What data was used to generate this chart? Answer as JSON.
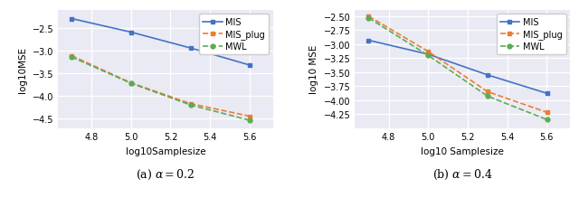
{
  "x": [
    4.699,
    5.0,
    5.301,
    5.602
  ],
  "a02_MIS": [
    -2.3,
    -2.6,
    -2.95,
    -3.33
  ],
  "a02_MIS_plug": [
    -3.12,
    -3.72,
    -4.18,
    -4.46
  ],
  "a02_MWL": [
    -3.15,
    -3.73,
    -4.21,
    -4.55
  ],
  "a04_MIS": [
    -2.93,
    -3.18,
    -3.55,
    -3.88
  ],
  "a04_MIS_plug": [
    -2.5,
    -3.13,
    -3.85,
    -4.22
  ],
  "a04_MWL": [
    -2.53,
    -3.2,
    -3.93,
    -4.35
  ],
  "color_MIS": "#4472c4",
  "color_MIS_plug": "#ed7d31",
  "color_MWL": "#5dab54",
  "xlabel_a": "log10Samplesize",
  "xlabel_b": "log10 Samplesize",
  "ylabel_a": "log10MSE",
  "ylabel_b": "log10 MSE",
  "title_a": "(a) $\\alpha = 0.2$",
  "title_b": "(b) $\\alpha = 0.4$",
  "xlim": [
    4.63,
    5.72
  ],
  "ylim_a": [
    -4.72,
    -2.1
  ],
  "ylim_b": [
    -4.5,
    -2.38
  ],
  "xticks": [
    4.8,
    5.0,
    5.2,
    5.4,
    5.6
  ],
  "yticks_a": [
    -4.5,
    -4.0,
    -3.5,
    -3.0,
    -2.5
  ],
  "yticks_b": [
    -4.25,
    -4.0,
    -3.75,
    -3.5,
    -3.25,
    -3.0,
    -2.75,
    -2.5
  ],
  "bg_color": "#eaeaf4",
  "fig_bg": "#ffffff"
}
